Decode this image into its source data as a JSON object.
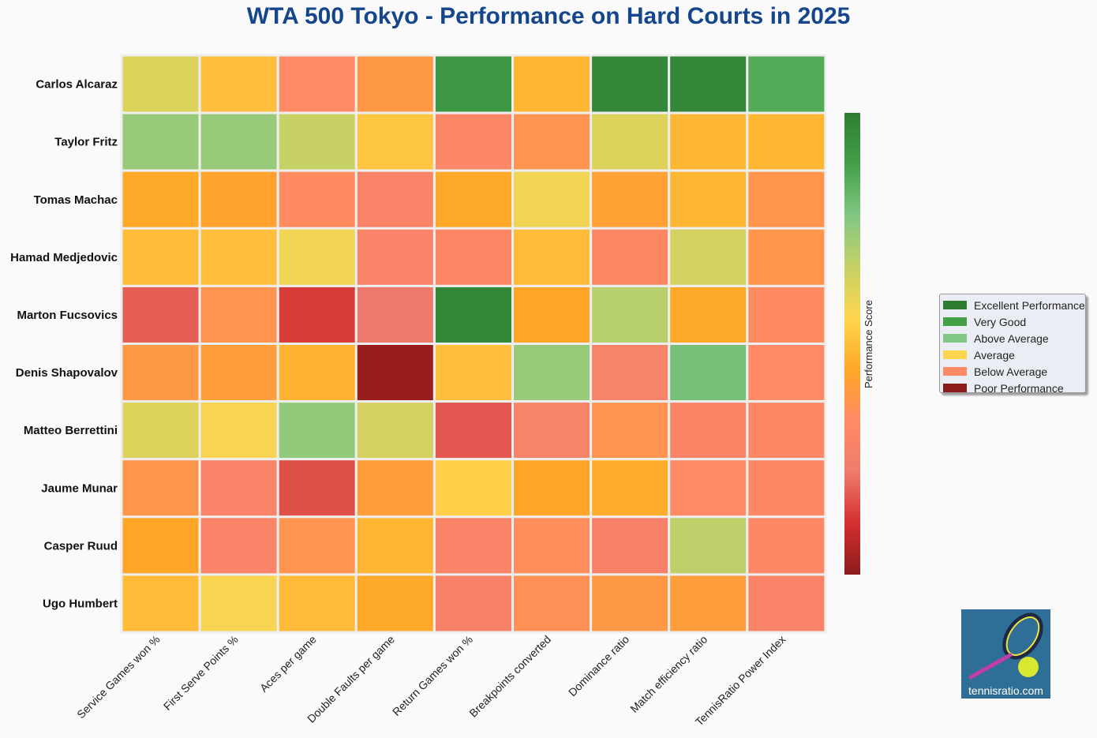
{
  "chart_data": {
    "type": "heatmap",
    "title": "WTA 500 Tokyo - Performance on Hard Courts in 2025",
    "rows": [
      "Carlos Alcaraz",
      "Taylor Fritz",
      "Tomas Machac",
      "Hamad Medjedovic",
      "Marton Fucsovics",
      "Denis Shapovalov",
      "Matteo Berrettini",
      "Jaume Munar",
      "Casper Ruud",
      "Ugo Humbert"
    ],
    "columns": [
      "Service Games won %",
      "First Serve Points %",
      "Aces per game",
      "Double Faults per game",
      "Return Games won %",
      "Breakpoints converted",
      "Dominance ratio",
      "Match efficiency ratio",
      "TennisRatio Power Index"
    ],
    "values": [
      [
        0.62,
        0.5,
        0.33,
        0.39,
        0.92,
        0.48,
        0.97,
        0.97,
        0.86
      ],
      [
        0.74,
        0.74,
        0.66,
        0.52,
        0.31,
        0.37,
        0.62,
        0.48,
        0.48
      ],
      [
        0.45,
        0.43,
        0.34,
        0.29,
        0.45,
        0.58,
        0.42,
        0.48,
        0.38
      ],
      [
        0.49,
        0.5,
        0.58,
        0.29,
        0.31,
        0.49,
        0.32,
        0.64,
        0.38
      ],
      [
        0.18,
        0.37,
        0.13,
        0.22,
        0.97,
        0.44,
        0.69,
        0.45,
        0.34
      ],
      [
        0.39,
        0.41,
        0.47,
        0.02,
        0.5,
        0.74,
        0.28,
        0.8,
        0.33
      ],
      [
        0.62,
        0.57,
        0.75,
        0.64,
        0.17,
        0.28,
        0.37,
        0.3,
        0.32
      ],
      [
        0.38,
        0.29,
        0.16,
        0.41,
        0.54,
        0.44,
        0.46,
        0.33,
        0.32
      ],
      [
        0.44,
        0.29,
        0.37,
        0.48,
        0.29,
        0.35,
        0.27,
        0.68,
        0.32
      ],
      [
        0.49,
        0.57,
        0.49,
        0.45,
        0.27,
        0.36,
        0.39,
        0.41,
        0.29
      ]
    ],
    "colorbar_label": "Performance Score",
    "legend": [
      {
        "label": "Excellent Performance",
        "color": "#2e7d32"
      },
      {
        "label": "Very Good",
        "color": "#43a047"
      },
      {
        "label": "Above Average",
        "color": "#81c784"
      },
      {
        "label": "Average",
        "color": "#ffd54f"
      },
      {
        "label": "Below Average",
        "color": "#ff8a65"
      },
      {
        "label": "Poor Performance",
        "color": "#8b1a1a"
      }
    ],
    "colorscale": [
      "#8b1a1a",
      "#d32f2f",
      "#ef7b6b",
      "#ff8a65",
      "#ffa726",
      "#ffd54f",
      "#c5d165",
      "#81c784",
      "#43a047",
      "#2e7d32"
    ],
    "legend_position": "right"
  },
  "logo": {
    "text": "tennisratio.com"
  }
}
